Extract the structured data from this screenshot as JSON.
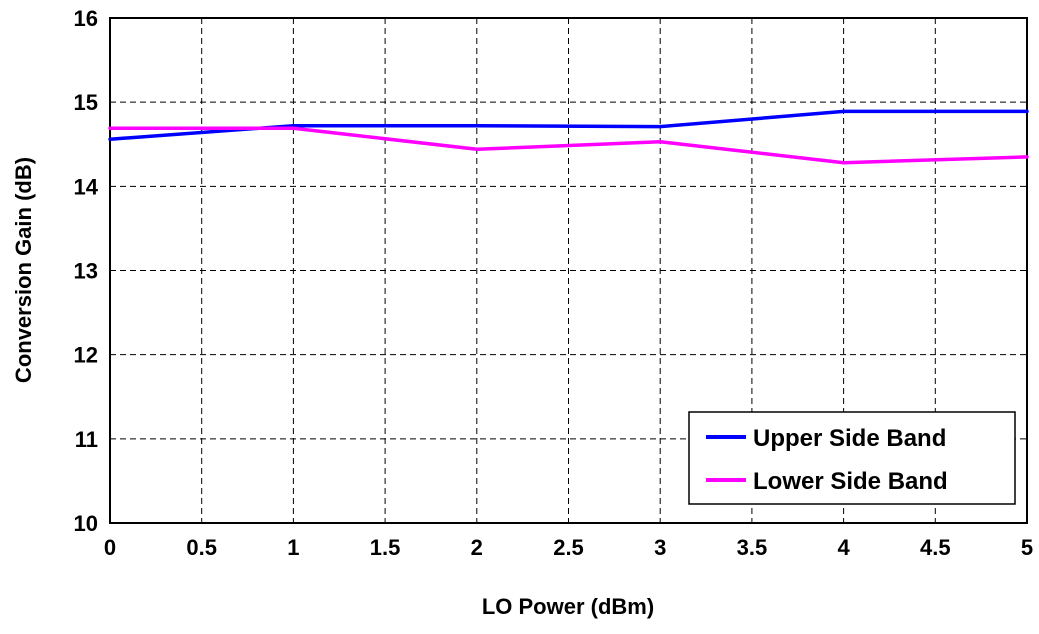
{
  "chart_data": {
    "type": "line",
    "title": "",
    "xlabel": "LO Power (dBm)",
    "ylabel": "Conversion Gain (dB)",
    "xlim": [
      0,
      5
    ],
    "ylim": [
      10,
      16
    ],
    "xticks": [
      "0",
      "0.5",
      "1",
      "1.5",
      "2",
      "2.5",
      "3",
      "3.5",
      "4",
      "4.5",
      "5"
    ],
    "yticks": [
      "10",
      "11",
      "12",
      "13",
      "14",
      "15",
      "16"
    ],
    "grid": true,
    "legend_position": "bottom-right",
    "x": [
      0,
      1,
      2,
      3,
      4,
      5
    ],
    "series": [
      {
        "name": "Upper Side Band",
        "color": "#0000ff",
        "values": [
          14.56,
          14.72,
          14.72,
          14.71,
          14.89,
          14.89
        ]
      },
      {
        "name": "Lower Side Band",
        "color": "#ff00ff",
        "values": [
          14.69,
          14.69,
          14.44,
          14.53,
          14.28,
          14.35
        ]
      }
    ]
  }
}
